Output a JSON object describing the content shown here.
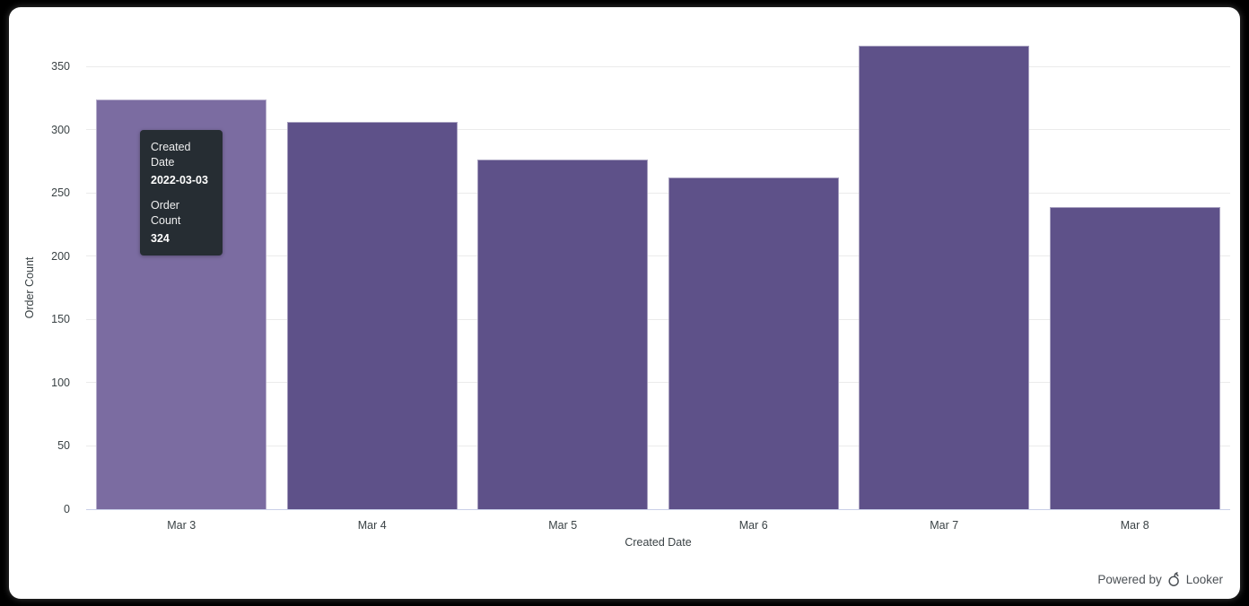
{
  "chart_data": {
    "type": "bar",
    "categories": [
      "Mar 3",
      "Mar 4",
      "Mar 5",
      "Mar 6",
      "Mar 7",
      "Mar 8"
    ],
    "values": [
      324,
      306,
      276,
      262,
      366,
      239
    ],
    "title": "",
    "xlabel": "Created Date",
    "ylabel": "Order Count",
    "ylim": [
      0,
      350
    ],
    "yticks": [
      0,
      50,
      100,
      150,
      200,
      250,
      300,
      350
    ],
    "grid": true,
    "legend": "none",
    "hovered_index": 0
  },
  "tooltip": {
    "x_label": "Created Date",
    "x_value": "2022-03-03",
    "y_label": "Order Count",
    "y_value": "324"
  },
  "footer": {
    "powered_by": "Powered by",
    "brand": "Looker"
  },
  "colors": {
    "bar": "#5e5189",
    "bar_hover": "#7b6ca1",
    "tooltip_bg": "#262d33",
    "grid_line": "#ebebeb",
    "zero_line": "#c9cfe8",
    "axis_text": "#3a4245",
    "footer_text": "#4a4f54",
    "panel_bg": "#ffffff",
    "page_bg": "#000000"
  }
}
